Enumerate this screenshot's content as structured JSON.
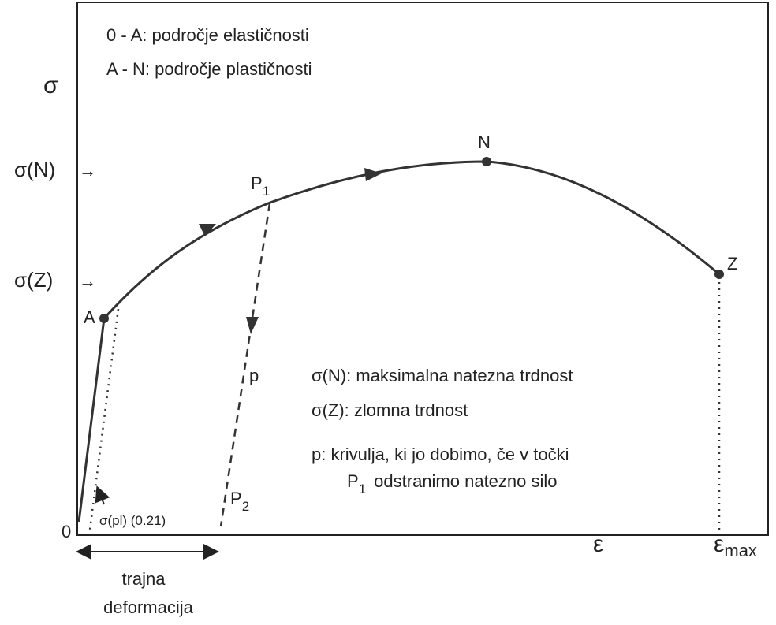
{
  "legend": [
    "0 - A: področje elastičnosti",
    "A - N: področje plastičnosti"
  ],
  "axis": {
    "y": "σ",
    "x": "ε",
    "origin": "0",
    "x_max": {
      "base": "ε",
      "sub": "max"
    }
  },
  "y_marks": [
    {
      "label": "σ(N)",
      "arrow": "→"
    },
    {
      "label": "σ(Z)",
      "arrow": "→"
    }
  ],
  "points": {
    "A": "A",
    "N": "N",
    "Z": "Z",
    "P1": {
      "base": "P",
      "sub": "1"
    },
    "P2": {
      "base": "P",
      "sub": "2"
    },
    "p": "p"
  },
  "offset_label": "σ(pl) (0.21)",
  "permanent": [
    "trajna",
    "deformacija"
  ],
  "notes": [
    "σ(N): maksimalna natezna trdnost",
    "σ(Z): zlomna trdnost",
    "p: krivulja, ki jo dobimo, če v točki",
    {
      "base": "P",
      "sub": "1",
      "rest": "odstranimo natezno silo"
    }
  ]
}
